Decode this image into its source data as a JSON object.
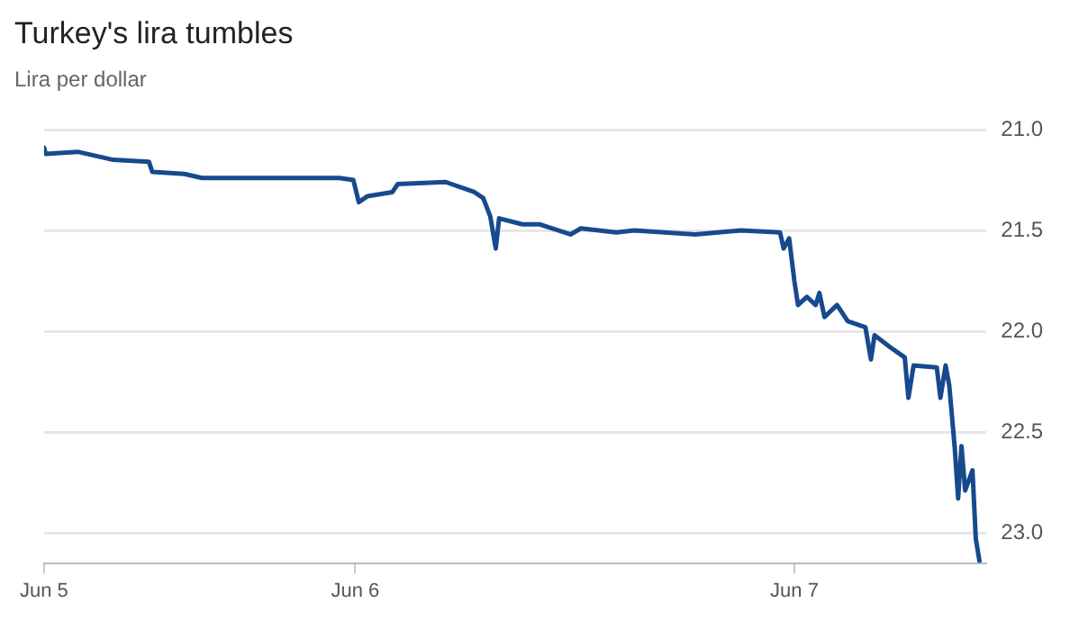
{
  "chart_data": {
    "type": "line",
    "title": "Turkey's lira tumbles",
    "subtitle": "Lira per dollar",
    "x": [
      "--06-05T07:00",
      "--06-05T07:05",
      "--06-05T08:50",
      "--06-05T10:47",
      "--06-05T12:44",
      "--06-05T12:55",
      "--06-05T14:40",
      "--06-05T15:38",
      "--06-05T18:34",
      "--06-05T23:08",
      "--06-05T23:54",
      "--06-06T00:12",
      "--06-06T00:41",
      "--06-06T02:02",
      "--06-06T02:20",
      "--06-06T04:57",
      "--06-06T06:31",
      "--06-06T07:00",
      "--06-06T07:23",
      "--06-06T07:41",
      "--06-06T07:52",
      "--06-06T09:08",
      "--06-06T10:06",
      "--06-06T11:46",
      "--06-06T12:20",
      "--06-06T14:17",
      "--06-06T15:15",
      "--06-06T18:34",
      "--06-06T21:05",
      "--06-06T23:13",
      "--06-06T23:25",
      "--06-06T23:43",
      "--06-07T00:00",
      "--06-07T00:12",
      "--06-07T00:41",
      "--06-07T01:10",
      "--06-07T01:22",
      "--06-07T01:39",
      "--06-07T02:20",
      "--06-07T02:55",
      "--06-07T03:53",
      "--06-07T04:11",
      "--06-07T04:23",
      "--06-07T05:15",
      "--06-07T06:02",
      "--06-07T06:14",
      "--06-07T06:31",
      "--06-07T07:47",
      "--06-07T07:59",
      "--06-07T08:16",
      "--06-07T08:28",
      "--06-07T08:46",
      "--06-07T08:57",
      "--06-07T09:08",
      "--06-07T09:20",
      "--06-07T09:44",
      "--06-07T09:55",
      "--06-07T10:07"
    ],
    "series": [
      {
        "color": "#164a8c",
        "values": [
          21.09,
          21.12,
          21.11,
          21.15,
          21.16,
          21.21,
          21.22,
          21.24,
          21.24,
          21.24,
          21.25,
          21.36,
          21.33,
          21.31,
          21.27,
          21.26,
          21.31,
          21.34,
          21.43,
          21.59,
          21.44,
          21.47,
          21.47,
          21.52,
          21.49,
          21.51,
          21.5,
          21.52,
          21.5,
          21.51,
          21.59,
          21.54,
          21.75,
          21.87,
          21.83,
          21.87,
          21.81,
          21.93,
          21.87,
          21.95,
          21.98,
          22.14,
          22.02,
          22.08,
          22.13,
          22.33,
          22.17,
          22.18,
          22.33,
          22.17,
          22.27,
          22.58,
          22.83,
          22.57,
          22.79,
          22.69,
          23.03,
          23.14
        ]
      }
    ],
    "xlim": [
      "--06-05T07:00",
      "--06-07T10:30"
    ],
    "xticks": [
      {
        "value": "--06-05T07:00",
        "label": "Jun 5"
      },
      {
        "value": "--06-06T00:00",
        "label": "Jun 6"
      },
      {
        "value": "--06-07T00:00",
        "label": "Jun 7"
      }
    ],
    "ylim": [
      23.15,
      21
    ],
    "yticks": [
      {
        "value": 21,
        "label": "21.0"
      },
      {
        "value": 21.5,
        "label": "21.5"
      },
      {
        "value": 22,
        "label": "22.0"
      },
      {
        "value": 22.5,
        "label": "22.5"
      },
      {
        "value": 23,
        "label": "23.0"
      }
    ],
    "grid": "y",
    "marker": "none",
    "line_style": "solid"
  }
}
